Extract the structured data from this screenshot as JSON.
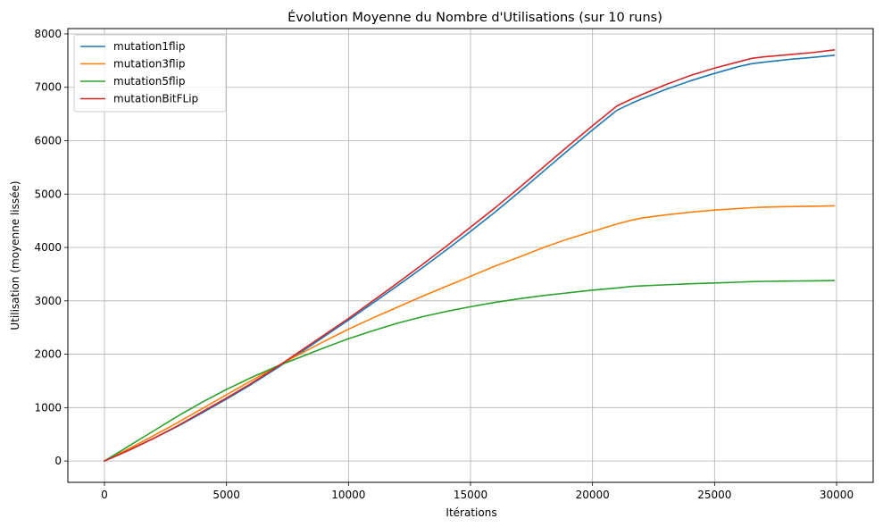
{
  "chart_data": {
    "type": "line",
    "title": "Évolution Moyenne du Nombre d'Utilisations (sur 10 runs)",
    "xlabel": "Itérations",
    "ylabel": "Utilisation (moyenne lissée)",
    "xlim": [
      -1500,
      31500
    ],
    "ylim": [
      -400,
      8100
    ],
    "xticks": [
      0,
      5000,
      10000,
      15000,
      20000,
      25000,
      30000
    ],
    "yticks": [
      0,
      1000,
      2000,
      3000,
      4000,
      5000,
      6000,
      7000,
      8000
    ],
    "grid": true,
    "legend_position": "top-left",
    "x": [
      0,
      1000,
      2000,
      3000,
      4000,
      5000,
      6000,
      7000,
      8000,
      9000,
      10000,
      11000,
      12000,
      13000,
      14000,
      15000,
      16000,
      17000,
      18000,
      19000,
      20000,
      21000,
      21600,
      22000,
      23000,
      24000,
      25000,
      26000,
      26500,
      27000,
      28000,
      29000,
      29900
    ],
    "series": [
      {
        "name": "mutation1flip",
        "color": "#1f77b4",
        "values": [
          0,
          200,
          420,
          650,
          900,
          1160,
          1430,
          1720,
          2020,
          2330,
          2640,
          2960,
          3280,
          3610,
          3950,
          4300,
          4660,
          5040,
          5430,
          5820,
          6200,
          6570,
          6700,
          6780,
          6960,
          7120,
          7260,
          7390,
          7440,
          7470,
          7520,
          7560,
          7600
        ]
      },
      {
        "name": "mutation3flip",
        "color": "#ff7f0e",
        "values": [
          0,
          230,
          470,
          720,
          980,
          1240,
          1500,
          1760,
          2000,
          2240,
          2470,
          2680,
          2880,
          3080,
          3270,
          3460,
          3650,
          3820,
          4000,
          4160,
          4300,
          4440,
          4510,
          4550,
          4610,
          4660,
          4700,
          4730,
          4745,
          4755,
          4765,
          4772,
          4780
        ]
      },
      {
        "name": "mutation5flip",
        "color": "#2ca02c",
        "values": [
          0,
          280,
          560,
          840,
          1100,
          1340,
          1560,
          1760,
          1940,
          2120,
          2290,
          2440,
          2580,
          2700,
          2800,
          2890,
          2970,
          3040,
          3100,
          3150,
          3200,
          3240,
          3270,
          3280,
          3300,
          3320,
          3335,
          3350,
          3360,
          3365,
          3370,
          3375,
          3380
        ]
      },
      {
        "name": "mutationBitFLip",
        "color": "#d62728",
        "values": [
          0,
          200,
          420,
          660,
          920,
          1180,
          1450,
          1740,
          2050,
          2360,
          2670,
          3000,
          3330,
          3670,
          4020,
          4380,
          4740,
          5120,
          5510,
          5900,
          6280,
          6650,
          6780,
          6860,
          7050,
          7220,
          7360,
          7480,
          7540,
          7570,
          7610,
          7650,
          7700
        ]
      }
    ]
  }
}
